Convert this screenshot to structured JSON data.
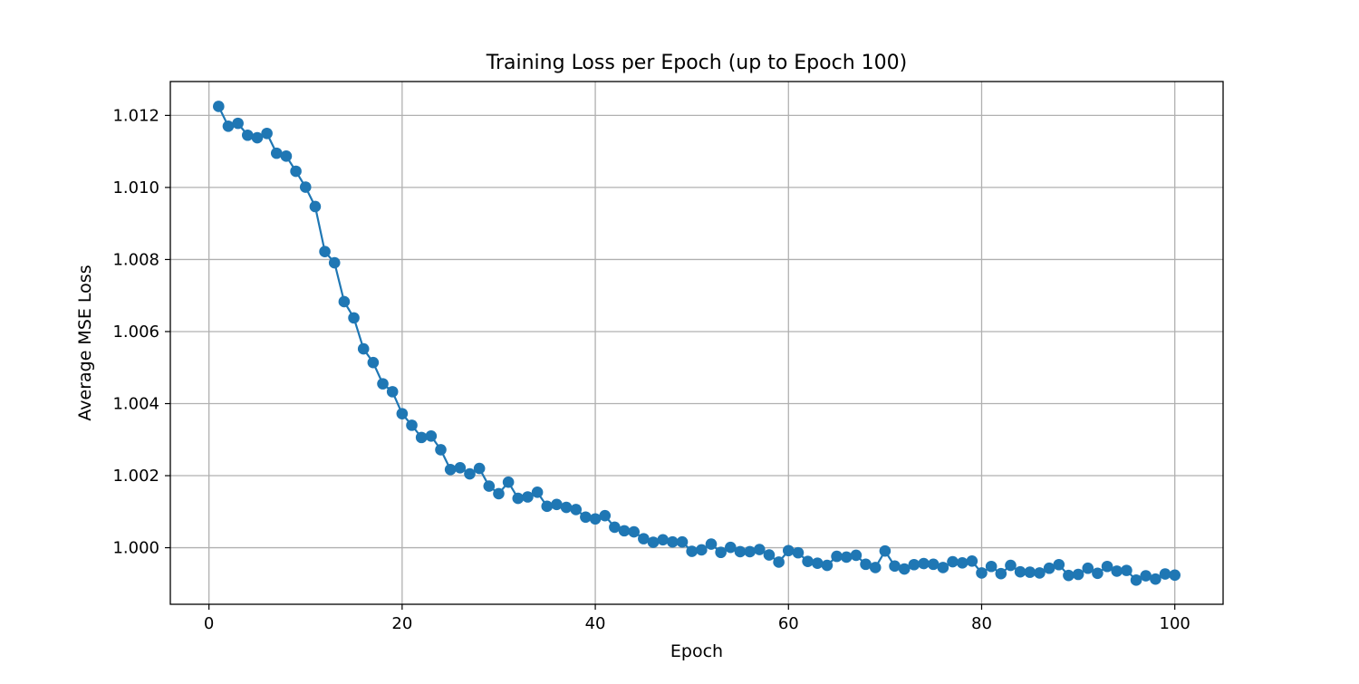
{
  "chart_data": {
    "type": "line",
    "title": "Training Loss per Epoch (up to Epoch 100)",
    "xlabel": "Epoch",
    "ylabel": "Average MSE Loss",
    "xlim": [
      -4,
      105
    ],
    "ylim": [
      0.99843,
      1.01294
    ],
    "x_ticks": [
      0,
      20,
      40,
      60,
      80,
      100
    ],
    "x_tick_labels": [
      "0",
      "20",
      "40",
      "60",
      "80",
      "100"
    ],
    "y_ticks": [
      1.0,
      1.002,
      1.004,
      1.006,
      1.008,
      1.01,
      1.012
    ],
    "y_tick_labels": [
      "1.000",
      "1.002",
      "1.004",
      "1.006",
      "1.008",
      "1.010",
      "1.012"
    ],
    "grid": true,
    "marker": "circle",
    "series_color": "#1f77b4",
    "series": [
      {
        "x": [
          1,
          2,
          3,
          4,
          5,
          6,
          7,
          8,
          9,
          10,
          11,
          12,
          13,
          14,
          15,
          16,
          17,
          18,
          19,
          20,
          21,
          22,
          23,
          24,
          25,
          26,
          27,
          28,
          29,
          30,
          31,
          32,
          33,
          34,
          35,
          36,
          37,
          38,
          39,
          40,
          41,
          42,
          43,
          44,
          45,
          46,
          47,
          48,
          49,
          50,
          51,
          52,
          53,
          54,
          55,
          56,
          57,
          58,
          59,
          60,
          61,
          62,
          63,
          64,
          65,
          66,
          67,
          68,
          69,
          70,
          71,
          72,
          73,
          74,
          75,
          76,
          77,
          78,
          79,
          80,
          81,
          82,
          83,
          84,
          85,
          86,
          87,
          88,
          89,
          90,
          91,
          92,
          93,
          94,
          95,
          96,
          97,
          98,
          99,
          100
        ],
        "values": [
          1.01225,
          1.0117,
          1.01178,
          1.01145,
          1.01138,
          1.0115,
          1.01095,
          1.01087,
          1.01045,
          1.01001,
          1.00947,
          1.00822,
          1.00791,
          1.00683,
          1.00638,
          1.00552,
          1.00514,
          1.00455,
          1.00433,
          1.00372,
          1.0034,
          1.00306,
          1.0031,
          1.00272,
          1.00217,
          1.00222,
          1.00205,
          1.0022,
          1.00171,
          1.0015,
          1.00182,
          1.00137,
          1.00141,
          1.00154,
          1.00115,
          1.0012,
          1.00112,
          1.00106,
          1.00085,
          1.0008,
          1.00089,
          1.00057,
          1.00047,
          1.00044,
          1.00025,
          1.00015,
          1.00022,
          1.00016,
          1.00016,
          0.9999,
          0.99994,
          1.0001,
          0.99987,
          1.00001,
          0.99989,
          0.99989,
          0.99995,
          0.9998,
          0.9996,
          0.99992,
          0.99986,
          0.99962,
          0.99957,
          0.99951,
          0.99976,
          0.99974,
          0.99979,
          0.99954,
          0.99945,
          0.99991,
          0.99949,
          0.99941,
          0.99953,
          0.99956,
          0.99954,
          0.99945,
          0.99961,
          0.99958,
          0.99963,
          0.9993,
          0.99948,
          0.99928,
          0.99951,
          0.99933,
          0.99932,
          0.9993,
          0.99943,
          0.99953,
          0.99923,
          0.99926,
          0.99943,
          0.99929,
          0.99948,
          0.99935,
          0.99937,
          0.9991,
          0.99922,
          0.99913,
          0.99927,
          0.99924
        ]
      }
    ]
  }
}
